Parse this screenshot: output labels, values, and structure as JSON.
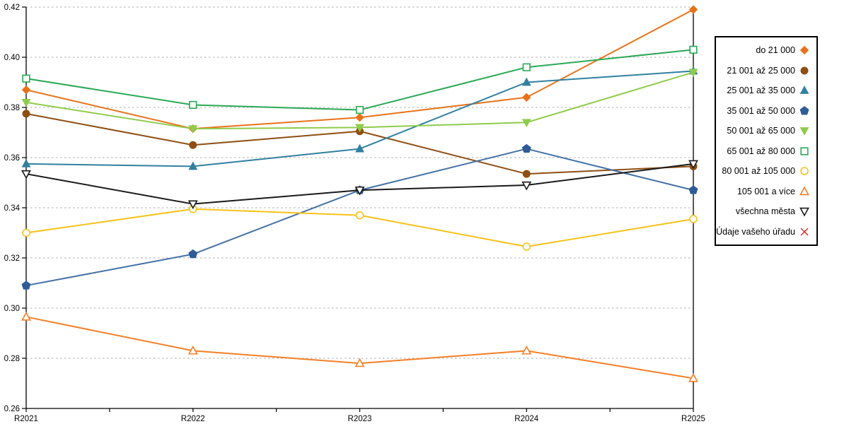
{
  "chart_data": {
    "type": "line",
    "title": "",
    "xlabel": "",
    "ylabel": "",
    "categories": [
      "R2021",
      "R2022",
      "R2023",
      "R2024",
      "R2025"
    ],
    "ylim": [
      0.26,
      0.42
    ],
    "ytick_step": 0.02,
    "yticks": [
      "0.26",
      "0.28",
      "0.30",
      "0.32",
      "0.34",
      "0.36",
      "0.38",
      "0.40",
      "0.42"
    ],
    "grid": "horizontal-dashed",
    "legend_position": "right-box",
    "series": [
      {
        "name": "do 21 000",
        "color": "#E8721A",
        "marker": "diamond",
        "marker_filled": true,
        "values": [
          0.387,
          0.3715,
          0.376,
          0.384,
          0.419
        ]
      },
      {
        "name": "21 001 až 25 000",
        "color": "#8E4E12",
        "marker": "circle",
        "marker_filled": true,
        "values": [
          0.3775,
          0.365,
          0.3705,
          0.3535,
          0.3565
        ]
      },
      {
        "name": "25 001 až 35 000",
        "color": "#31809F",
        "marker": "triangle-up",
        "marker_filled": true,
        "values": [
          0.3575,
          0.3565,
          0.3635,
          0.39,
          0.3945
        ]
      },
      {
        "name": "35 001 až 50 000",
        "color": "#4470A6",
        "marker_color": "#2F5C94",
        "marker": "pentagon",
        "marker_filled": true,
        "values": [
          0.309,
          0.3215,
          0.347,
          0.3635,
          0.347
        ]
      },
      {
        "name": "50 001 až 65 000",
        "color": "#8FCB4C",
        "marker": "triangle-down",
        "marker_filled": true,
        "values": [
          0.382,
          0.3715,
          0.372,
          0.374,
          0.394
        ]
      },
      {
        "name": "65 001 až 80 000",
        "color": "#29A854",
        "marker": "square",
        "marker_filled": false,
        "values": [
          0.3915,
          0.381,
          0.379,
          0.396,
          0.403
        ]
      },
      {
        "name": "80 001 až 105 000",
        "color": "#F7C11A",
        "marker": "circle",
        "marker_filled": false,
        "values": [
          0.33,
          0.3395,
          0.337,
          0.3245,
          0.3355
        ]
      },
      {
        "name": "105 001 a více",
        "color": "#F57E26",
        "marker": "triangle-up",
        "marker_filled": false,
        "values": [
          0.2965,
          0.283,
          0.278,
          0.283,
          0.272
        ]
      },
      {
        "name": "všechna města",
        "color": "#1A1A1A",
        "marker": "triangle-down",
        "marker_filled": false,
        "values": [
          0.3535,
          0.3415,
          0.347,
          0.349,
          0.3575
        ]
      },
      {
        "name": "Údaje vašeho úřadu",
        "color": "#D22B2B",
        "marker": "x",
        "marker_filled": false,
        "values": [
          null,
          null,
          null,
          null,
          null
        ]
      }
    ]
  },
  "colors": {
    "axis": "#000000",
    "gridline": "#ababab",
    "background": "#ffffff",
    "legend_border": "#000000",
    "tick_label": "#000000"
  }
}
